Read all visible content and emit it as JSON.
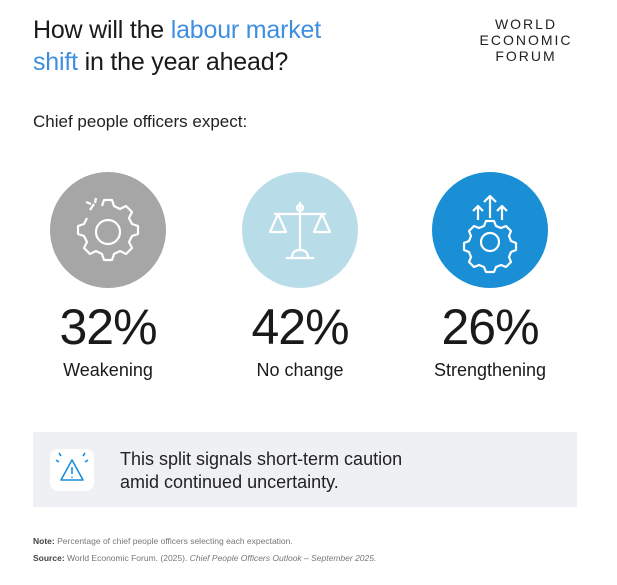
{
  "header": {
    "title_lines": [
      [
        "How will the ",
        "labour market"
      ],
      [
        "shift",
        " in the year ahead?"
      ]
    ],
    "logo": [
      "WORLD",
      "ECONOMIC",
      "FORUM"
    ]
  },
  "subtitle": "Chief people officers expect:",
  "items": [
    {
      "value": "32%",
      "label": "Weakening"
    },
    {
      "value": "42%",
      "label": "No change"
    },
    {
      "value": "26%",
      "label": "Strengthening"
    }
  ],
  "callout": [
    "This split signals short-term caution",
    "amid continued uncertainty."
  ],
  "footnotes": {
    "note_label": "Note:",
    "note": "Percentage of chief people officers selecting each expectation.",
    "source_label": "Source:",
    "source": "World Economic Forum. (2025). ",
    "source_title": "Chief People Officers Outlook – September 2025."
  }
}
